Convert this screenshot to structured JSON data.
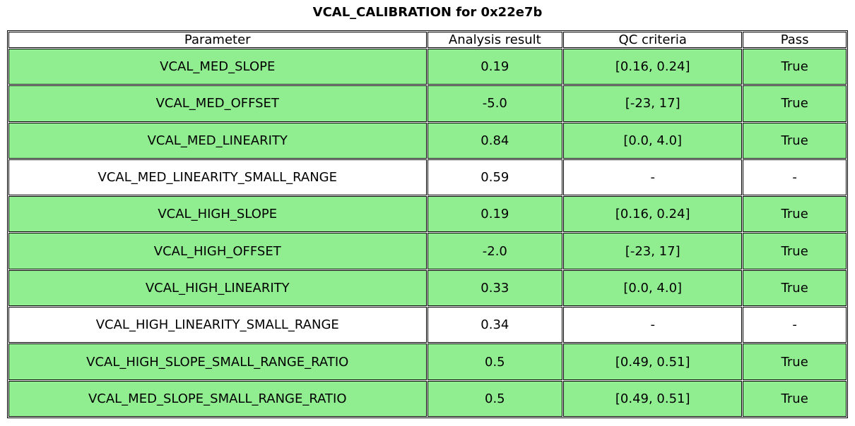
{
  "chart_data": {
    "type": "table",
    "title": "VCAL_CALIBRATION for 0x22e7b",
    "columns": [
      "Parameter",
      "Analysis result",
      "QC criteria",
      "Pass"
    ],
    "rows": [
      [
        "VCAL_MED_SLOPE",
        "0.19",
        "[0.16, 0.24]",
        "True"
      ],
      [
        "VCAL_MED_OFFSET",
        "-5.0",
        "[-23, 17]",
        "True"
      ],
      [
        "VCAL_MED_LINEARITY",
        "0.84",
        "[0.0, 4.0]",
        "True"
      ],
      [
        "VCAL_MED_LINEARITY_SMALL_RANGE",
        "0.59",
        "-",
        "-"
      ],
      [
        "VCAL_HIGH_SLOPE",
        "0.19",
        "[0.16, 0.24]",
        "True"
      ],
      [
        "VCAL_HIGH_OFFSET",
        "-2.0",
        "[-23, 17]",
        "True"
      ],
      [
        "VCAL_HIGH_LINEARITY",
        "0.33",
        "[0.0, 4.0]",
        "True"
      ],
      [
        "VCAL_HIGH_LINEARITY_SMALL_RANGE",
        "0.34",
        "-",
        "-"
      ],
      [
        "VCAL_HIGH_SLOPE_SMALL_RANGE_RATIO",
        "0.5",
        "[0.49, 0.51]",
        "True"
      ],
      [
        "VCAL_MED_SLOPE_SMALL_RANGE_RATIO",
        "0.5",
        "[0.49, 0.51]",
        "True"
      ]
    ],
    "row_highlight": [
      true,
      true,
      true,
      false,
      true,
      true,
      true,
      false,
      true,
      true
    ],
    "legend_position": "none",
    "grid": true,
    "colors": {
      "highlight_row_bg": "#90EE90",
      "default_row_bg": "#FFFFFF",
      "border": "#000000",
      "text": "#000000"
    }
  }
}
